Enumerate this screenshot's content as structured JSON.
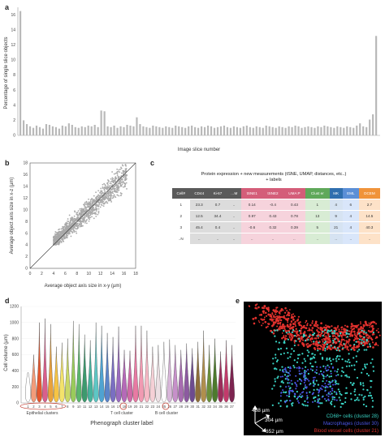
{
  "panels": {
    "a": "a",
    "b": "b",
    "c": "c",
    "d": "d",
    "e": "e"
  },
  "panel_a": {
    "ylabel": "Percentage of single slice objects",
    "xlabel": "Image slice number",
    "yticks": [
      "0",
      "2",
      "4",
      "6",
      "8",
      "10",
      "12",
      "14",
      "16"
    ]
  },
  "panel_b": {
    "xlabel": "Average object axis size in x-y (µm)",
    "ylabel": "Average object axis size in x-z (µm)",
    "ticks": [
      "0",
      "2",
      "4",
      "6",
      "8",
      "10",
      "12",
      "14",
      "16",
      "18"
    ]
  },
  "panel_c": {
    "title_line1": "Protein expression + new measurements (tSNE, UMAP, distances, etc..)",
    "title_line2": "+ labels",
    "headers": [
      "Cell#",
      "CD44",
      "Ki-67",
      "…M",
      "tSNE1",
      "tSNE2",
      "UMA P",
      "Clust er",
      "MK",
      "EML",
      "DCEM"
    ],
    "header_colors": [
      "#5a5a5a",
      "#5a5a5a",
      "#5a5a5a",
      "#5a5a5a",
      "#d45d79",
      "#d45d79",
      "#d45d79",
      "#5fa85a",
      "#2f6fae",
      "#5b8fd6",
      "#f0933a"
    ],
    "cell_colors": [
      "#ffffff",
      "#dcdcdc",
      "#dcdcdc",
      "#dcdcdc",
      "#f6d3dc",
      "#f6d3dc",
      "#f6d3dc",
      "#d8ecd4",
      "#d6e3f2",
      "#d9e6fa",
      "#fde2c8"
    ],
    "rows": [
      [
        "1",
        "23.3",
        "0.7",
        "..",
        "0.14",
        "-0.4",
        "0.43",
        "1",
        "4",
        "6",
        "2.7"
      ],
      [
        "2",
        "12.5",
        "34.4",
        "..",
        "0.97",
        "0.43",
        "0.78",
        "13",
        "9",
        "4",
        "14.5"
      ],
      [
        "3",
        "45.4",
        "0.4",
        "..",
        "-0.6",
        "0.32",
        "0.39",
        "5",
        "21",
        "4",
        "40.3"
      ],
      [
        "..N",
        "..",
        "..",
        "..",
        "..",
        "..",
        "..",
        "..",
        "..",
        "..",
        ".."
      ]
    ]
  },
  "panel_d": {
    "ylabel": "Cell volume (µm)",
    "xlabel": "Phenograph cluster label",
    "yticks": [
      "0",
      "200",
      "400",
      "600",
      "800",
      "1000",
      "1200"
    ],
    "clusters": [
      "1",
      "2",
      "3",
      "4",
      "5",
      "6",
      "7",
      "8",
      "9",
      "10",
      "11",
      "12",
      "13",
      "14",
      "15",
      "16",
      "17",
      "18",
      "19",
      "20",
      "21",
      "22",
      "23",
      "24",
      "25",
      "26",
      "27",
      "28",
      "29",
      "30",
      "31",
      "32",
      "33",
      "34",
      "35",
      "36",
      "37"
    ],
    "group_labels": [
      "Epithelial clusters",
      "T cell cluster",
      "B cell cluster"
    ]
  },
  "panel_e": {
    "dims": [
      "488 µm",
      "304 µm",
      "652 µm"
    ],
    "legend": [
      {
        "label": "CD68+ cells (cluster 28)",
        "color": "#39d3c4"
      },
      {
        "label": "Macrophages (cluster 30)",
        "color": "#4b56e6"
      },
      {
        "label": "Blood vessel cells (cluster 21)",
        "color": "#e0312d"
      }
    ]
  },
  "chart_data": [
    {
      "type": "bar",
      "title": "",
      "xlabel": "Image slice number",
      "ylabel": "Percentage of single slice objects",
      "ylim": [
        0,
        17
      ],
      "values": [
        16.5,
        2,
        1.5,
        1.2,
        1,
        1.3,
        1.1,
        0.9,
        1.5,
        1.4,
        1.2,
        1.1,
        0.9,
        1.3,
        1.2,
        1.6,
        1.4,
        1.1,
        1,
        1.2,
        1.1,
        1.3,
        1.2,
        1.4,
        1.1,
        3.3,
        3.2,
        1.2,
        1.1,
        1.3,
        1,
        1.2,
        1.1,
        1.4,
        1.3,
        1.2,
        2.4,
        1.5,
        1.2,
        1.1,
        1,
        1.3,
        1.2,
        1.1,
        1,
        1.2,
        1.1,
        1,
        1.3,
        1.2,
        1.1,
        1,
        1.2,
        1.3,
        1.1,
        1,
        1.2,
        1.1,
        1.3,
        1.2,
        1,
        1.1,
        1.2,
        1.3,
        1.1,
        1,
        1.2,
        1.1,
        1,
        1.2,
        1.3,
        1.1,
        1,
        1.2,
        1.1,
        1,
        1.3,
        1.2,
        1.1,
        1,
        1.2,
        1.1,
        1,
        1.2,
        1.1,
        1.3,
        1.2,
        1,
        1.1,
        1.2,
        1.1,
        1,
        1.2,
        1.1,
        1.3,
        1.2,
        1.1,
        1,
        1.2,
        1.1,
        1,
        1.2,
        1.1,
        1,
        1.3,
        1.6,
        1.2,
        1.1,
        2.1,
        2.8,
        13.2
      ]
    },
    {
      "type": "scatter",
      "title": "",
      "xlabel": "Average object axis size in x-y (µm)",
      "ylabel": "Average object axis size in x-z (µm)",
      "xlim": [
        0,
        18
      ],
      "ylim": [
        0,
        18
      ],
      "reference_line": [
        [
          0,
          0
        ],
        [
          18,
          18
        ]
      ]
    },
    {
      "type": "violin",
      "title": "",
      "xlabel": "Phenograph cluster label",
      "ylabel": "Cell volume (µm)",
      "ylim": [
        0,
        1200
      ],
      "categories": [
        "1",
        "2",
        "3",
        "4",
        "5",
        "6",
        "7",
        "8",
        "9",
        "10",
        "11",
        "12",
        "13",
        "14",
        "15",
        "16",
        "17",
        "18",
        "19",
        "20",
        "21",
        "22",
        "23",
        "24",
        "25",
        "26",
        "27",
        "28",
        "29",
        "30",
        "31",
        "32",
        "33",
        "34",
        "35",
        "36",
        "37"
      ],
      "max_values": [
        380,
        600,
        1000,
        1050,
        980,
        700,
        750,
        800,
        1020,
        980,
        850,
        780,
        1000,
        960,
        870,
        820,
        950,
        660,
        650,
        960,
        960,
        900,
        700,
        720,
        760,
        790,
        720,
        660,
        740,
        680,
        760,
        900,
        720,
        800,
        640,
        780,
        720
      ]
    }
  ]
}
